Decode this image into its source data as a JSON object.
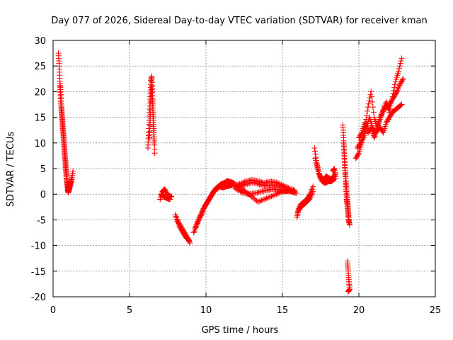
{
  "chart_data": {
    "type": "scatter",
    "title": "Day 077 of 2026, Sidereal Day-to-day VTEC variation (SDTVAR) for receiver kman",
    "xlabel": "GPS time / hours",
    "ylabel": "SDTVAR / TECUs",
    "xlim": [
      0,
      25
    ],
    "ylim": [
      -20,
      30
    ],
    "xticks": [
      0,
      5,
      10,
      15,
      20,
      25
    ],
    "yticks": [
      -20,
      -15,
      -10,
      -5,
      0,
      5,
      10,
      15,
      20,
      25,
      30
    ],
    "xtick_labels": [
      "0",
      "5",
      "10",
      "15",
      "20",
      "25"
    ],
    "ytick_labels": [
      "-20",
      "-15",
      "-10",
      "-5",
      "0",
      "5",
      "10",
      "15",
      "20",
      "25",
      "30"
    ],
    "grid": true,
    "marker": "+",
    "color": "#ff0000",
    "series": [
      {
        "name": "SDTVAR",
        "tracks": [
          [
            [
              0.35,
              27.5
            ],
            [
              0.4,
              25
            ],
            [
              0.45,
              22
            ],
            [
              0.5,
              20
            ],
            [
              0.55,
              17
            ],
            [
              0.6,
              15
            ],
            [
              0.65,
              13
            ],
            [
              0.7,
              11
            ],
            [
              0.75,
              9
            ],
            [
              0.8,
              7
            ],
            [
              0.85,
              5
            ],
            [
              0.9,
              3
            ],
            [
              0.95,
              1
            ],
            [
              1.0,
              0.3
            ],
            [
              1.05,
              1
            ],
            [
              1.1,
              1.5
            ],
            [
              1.2,
              2.5
            ],
            [
              1.3,
              4.5
            ]
          ],
          [
            [
              0.45,
              21
            ],
            [
              0.5,
              18
            ],
            [
              0.55,
              16
            ],
            [
              0.6,
              14
            ],
            [
              0.65,
              12
            ],
            [
              0.7,
              10
            ],
            [
              0.75,
              8
            ],
            [
              0.8,
              6
            ],
            [
              0.85,
              4
            ],
            [
              0.9,
              2.5
            ],
            [
              0.95,
              1.5
            ],
            [
              1.0,
              1
            ],
            [
              1.1,
              2
            ],
            [
              1.2,
              3
            ]
          ],
          [
            [
              6.2,
              9
            ],
            [
              6.25,
              12
            ],
            [
              6.3,
              16
            ],
            [
              6.35,
              19
            ],
            [
              6.4,
              22
            ],
            [
              6.45,
              23
            ],
            [
              6.5,
              20
            ],
            [
              6.55,
              16
            ],
            [
              6.6,
              12
            ],
            [
              6.65,
              8
            ]
          ],
          [
            [
              6.3,
              11
            ],
            [
              6.35,
              14
            ],
            [
              6.4,
              18
            ],
            [
              6.45,
              21
            ],
            [
              6.5,
              18
            ],
            [
              6.55,
              14
            ],
            [
              6.6,
              10
            ]
          ],
          [
            [
              7.0,
              -1
            ],
            [
              7.15,
              0.5
            ],
            [
              7.3,
              1
            ],
            [
              7.45,
              0
            ],
            [
              7.6,
              -0.3
            ],
            [
              7.75,
              -0.5
            ]
          ],
          [
            [
              7.05,
              0
            ],
            [
              7.25,
              -0.5
            ],
            [
              7.45,
              -0.8
            ],
            [
              7.65,
              -1
            ]
          ],
          [
            [
              8.0,
              -4
            ],
            [
              8.2,
              -5.5
            ],
            [
              8.4,
              -6.5
            ],
            [
              8.6,
              -7.5
            ],
            [
              8.8,
              -8.5
            ],
            [
              8.95,
              -9.5
            ]
          ],
          [
            [
              8.1,
              -5
            ],
            [
              8.3,
              -6.5
            ],
            [
              8.5,
              -7.5
            ],
            [
              8.7,
              -8.5
            ],
            [
              8.9,
              -9
            ]
          ],
          [
            [
              9.2,
              -7.5
            ],
            [
              9.4,
              -6
            ],
            [
              9.6,
              -4.5
            ],
            [
              9.8,
              -3
            ],
            [
              10.0,
              -2
            ],
            [
              10.2,
              -1
            ],
            [
              10.4,
              0
            ],
            [
              10.6,
              1
            ],
            [
              10.8,
              1.5
            ],
            [
              11.0,
              2
            ],
            [
              11.2,
              2.2
            ],
            [
              11.4,
              2.6
            ],
            [
              11.6,
              2.4
            ],
            [
              11.8,
              2.2
            ]
          ],
          [
            [
              9.3,
              -6.5
            ],
            [
              9.5,
              -5
            ],
            [
              9.7,
              -4
            ],
            [
              9.9,
              -2.5
            ],
            [
              10.1,
              -1.5
            ],
            [
              10.3,
              -0.5
            ],
            [
              10.5,
              0.5
            ],
            [
              10.7,
              1
            ],
            [
              10.9,
              1.5
            ],
            [
              11.1,
              1.3
            ],
            [
              11.3,
              1.5
            ],
            [
              11.5,
              1.6
            ],
            [
              11.7,
              1.8
            ]
          ],
          [
            [
              11.8,
              2.2
            ],
            [
              12.2,
              1.5
            ],
            [
              12.6,
              0.5
            ],
            [
              13.0,
              -0.5
            ],
            [
              13.4,
              -1.5
            ],
            [
              13.8,
              -1
            ],
            [
              14.2,
              -0.5
            ],
            [
              14.6,
              0
            ],
            [
              15.0,
              0.5
            ],
            [
              15.4,
              0.7
            ],
            [
              15.8,
              0.5
            ]
          ],
          [
            [
              12.0,
              1
            ],
            [
              12.4,
              0.3
            ],
            [
              12.8,
              0
            ],
            [
              13.2,
              0.2
            ],
            [
              13.6,
              0.5
            ],
            [
              14.0,
              0.8
            ],
            [
              14.4,
              1
            ],
            [
              14.8,
              0.8
            ],
            [
              15.2,
              0.6
            ],
            [
              15.6,
              0.5
            ],
            [
              15.9,
              0.2
            ]
          ],
          [
            [
              11.8,
              1.5
            ],
            [
              12.2,
              2
            ],
            [
              12.6,
              2.5
            ],
            [
              13.0,
              2.8
            ],
            [
              13.4,
              2.6
            ],
            [
              13.8,
              2.2
            ],
            [
              14.2,
              2.5
            ],
            [
              14.6,
              2.3
            ],
            [
              15.0,
              1.8
            ],
            [
              15.4,
              1.2
            ],
            [
              15.8,
              0.8
            ]
          ],
          [
            [
              11.9,
              1.2
            ],
            [
              12.3,
              1.6
            ],
            [
              12.7,
              2
            ],
            [
              13.1,
              2.3
            ],
            [
              13.5,
              1.9
            ],
            [
              13.9,
              1.6
            ],
            [
              14.3,
              1.8
            ],
            [
              14.7,
              1.6
            ],
            [
              15.1,
              1.3
            ]
          ],
          [
            [
              15.95,
              -4.5
            ],
            [
              16.05,
              -3
            ],
            [
              16.2,
              -2
            ],
            [
              16.4,
              -1.5
            ],
            [
              16.6,
              -1
            ],
            [
              16.8,
              0
            ],
            [
              17.0,
              1.5
            ]
          ],
          [
            [
              16.0,
              -3.5
            ],
            [
              16.2,
              -2.5
            ],
            [
              16.4,
              -2
            ],
            [
              16.6,
              -1.5
            ],
            [
              16.8,
              -0.8
            ],
            [
              17.0,
              0.5
            ]
          ],
          [
            [
              17.1,
              9
            ],
            [
              17.25,
              6
            ],
            [
              17.4,
              4
            ],
            [
              17.55,
              3
            ],
            [
              17.7,
              2.8
            ],
            [
              17.85,
              3.5
            ],
            [
              18.0,
              3.2
            ],
            [
              18.15,
              3
            ],
            [
              18.3,
              3
            ],
            [
              18.45,
              4
            ]
          ],
          [
            [
              17.15,
              7
            ],
            [
              17.3,
              5
            ],
            [
              17.45,
              3.5
            ],
            [
              17.6,
              2.5
            ],
            [
              17.8,
              2.2
            ],
            [
              18.0,
              2.5
            ],
            [
              18.2,
              2.5
            ],
            [
              18.4,
              3
            ]
          ],
          [
            [
              18.5,
              3
            ],
            [
              18.4,
              5
            ],
            [
              18.3,
              4.5
            ]
          ],
          [
            [
              18.95,
              13.5
            ],
            [
              19.0,
              11
            ],
            [
              19.05,
              8
            ],
            [
              19.1,
              5
            ],
            [
              19.15,
              3
            ],
            [
              19.2,
              1
            ],
            [
              19.25,
              -1
            ],
            [
              19.3,
              -3
            ],
            [
              19.35,
              -5
            ],
            [
              19.4,
              -6
            ]
          ],
          [
            [
              19.0,
              10
            ],
            [
              19.05,
              7
            ],
            [
              19.1,
              4
            ],
            [
              19.15,
              1.5
            ],
            [
              19.2,
              -1
            ],
            [
              19.25,
              -2
            ],
            [
              19.3,
              -4
            ],
            [
              19.35,
              -5.5
            ]
          ],
          [
            [
              19.25,
              -13
            ],
            [
              19.3,
              -15
            ],
            [
              19.35,
              -17
            ],
            [
              19.4,
              -18.5
            ],
            [
              19.3,
              -19
            ]
          ],
          [
            [
              19.8,
              7
            ],
            [
              20.0,
              8
            ],
            [
              20.2,
              10
            ],
            [
              20.4,
              13
            ],
            [
              20.6,
              17
            ],
            [
              20.8,
              20
            ],
            [
              21.0,
              15
            ],
            [
              21.2,
              13
            ],
            [
              21.4,
              15
            ],
            [
              21.6,
              16.5
            ],
            [
              21.8,
              18
            ],
            [
              22.0,
              16
            ],
            [
              22.2,
              19
            ],
            [
              22.4,
              22
            ],
            [
              22.6,
              24
            ],
            [
              22.8,
              26.5
            ]
          ],
          [
            [
              19.9,
              9
            ],
            [
              20.1,
              10
            ],
            [
              20.3,
              11
            ],
            [
              20.5,
              13
            ],
            [
              20.7,
              15
            ],
            [
              20.9,
              13
            ],
            [
              21.1,
              12
            ],
            [
              21.3,
              14
            ],
            [
              21.5,
              15.5
            ],
            [
              21.7,
              17
            ],
            [
              21.9,
              17
            ],
            [
              22.1,
              18
            ],
            [
              22.3,
              19
            ],
            [
              22.5,
              20
            ],
            [
              22.7,
              21.5
            ],
            [
              22.9,
              22.5
            ]
          ],
          [
            [
              20.0,
              11
            ],
            [
              20.2,
              12
            ],
            [
              20.4,
              14
            ],
            [
              20.6,
              12
            ],
            [
              20.8,
              13
            ],
            [
              21.0,
              11
            ],
            [
              21.2,
              12.5
            ],
            [
              21.4,
              13
            ],
            [
              21.6,
              12
            ],
            [
              21.8,
              14
            ],
            [
              22.0,
              15
            ],
            [
              22.2,
              16
            ],
            [
              22.4,
              16.5
            ],
            [
              22.6,
              17
            ],
            [
              22.8,
              17.5
            ]
          ]
        ]
      }
    ]
  }
}
